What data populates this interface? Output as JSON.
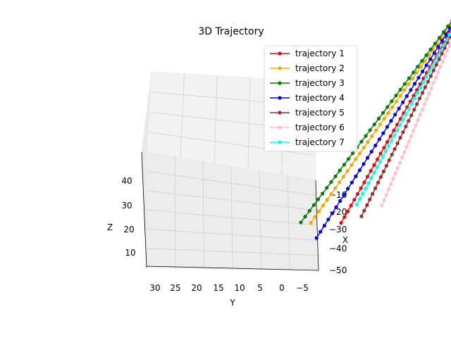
{
  "chart_data": {
    "type": "line",
    "projection": "3d",
    "title": "3D Trajectory",
    "xlabel": "X",
    "ylabel": "Y",
    "zlabel": "Z",
    "x_ticks": [
      "−10",
      "−20",
      "−30",
      "−40",
      "−50"
    ],
    "y_ticks": [
      "30",
      "25",
      "20",
      "15",
      "10",
      "5",
      "0",
      "−5"
    ],
    "z_ticks": [
      "40",
      "30",
      "20",
      "10"
    ],
    "grid": true,
    "legend_position": "top-right",
    "marker": "circle",
    "points_per_series": 40,
    "series": [
      {
        "name": "trajectory 1",
        "color": "#ff0000",
        "start": {
          "x": 0,
          "y": 31,
          "z": 48
        },
        "end": {
          "x": -35,
          "y": 5,
          "z": 5
        }
      },
      {
        "name": "trajectory 2",
        "color": "#ffa500",
        "start": {
          "x": 0,
          "y": 31,
          "z": 48
        },
        "end": {
          "x": -40,
          "y": -1,
          "z": 10
        }
      },
      {
        "name": "trajectory 3",
        "color": "#008000",
        "start": {
          "x": 0,
          "y": 31,
          "z": 48
        },
        "end": {
          "x": -42,
          "y": -3,
          "z": 12
        }
      },
      {
        "name": "trajectory 4",
        "color": "#0000ff",
        "start": {
          "x": 0,
          "y": 31,
          "z": 48
        },
        "end": {
          "x": -42,
          "y": 0,
          "z": 6
        }
      },
      {
        "name": "trajectory 5",
        "color": "#a52a2a",
        "start": {
          "x": 0,
          "y": 31,
          "z": 48
        },
        "end": {
          "x": -32,
          "y": 9,
          "z": 4
        }
      },
      {
        "name": "trajectory 6",
        "color": "#ffc0cb",
        "start": {
          "x": 0,
          "y": 31,
          "z": 48
        },
        "end": {
          "x": -30,
          "y": 13,
          "z": 5
        }
      },
      {
        "name": "trajectory 7",
        "color": "#00ffff",
        "start": {
          "x": 0,
          "y": 31,
          "z": 48
        },
        "end": {
          "x": -35,
          "y": 8,
          "z": 10
        }
      }
    ]
  }
}
